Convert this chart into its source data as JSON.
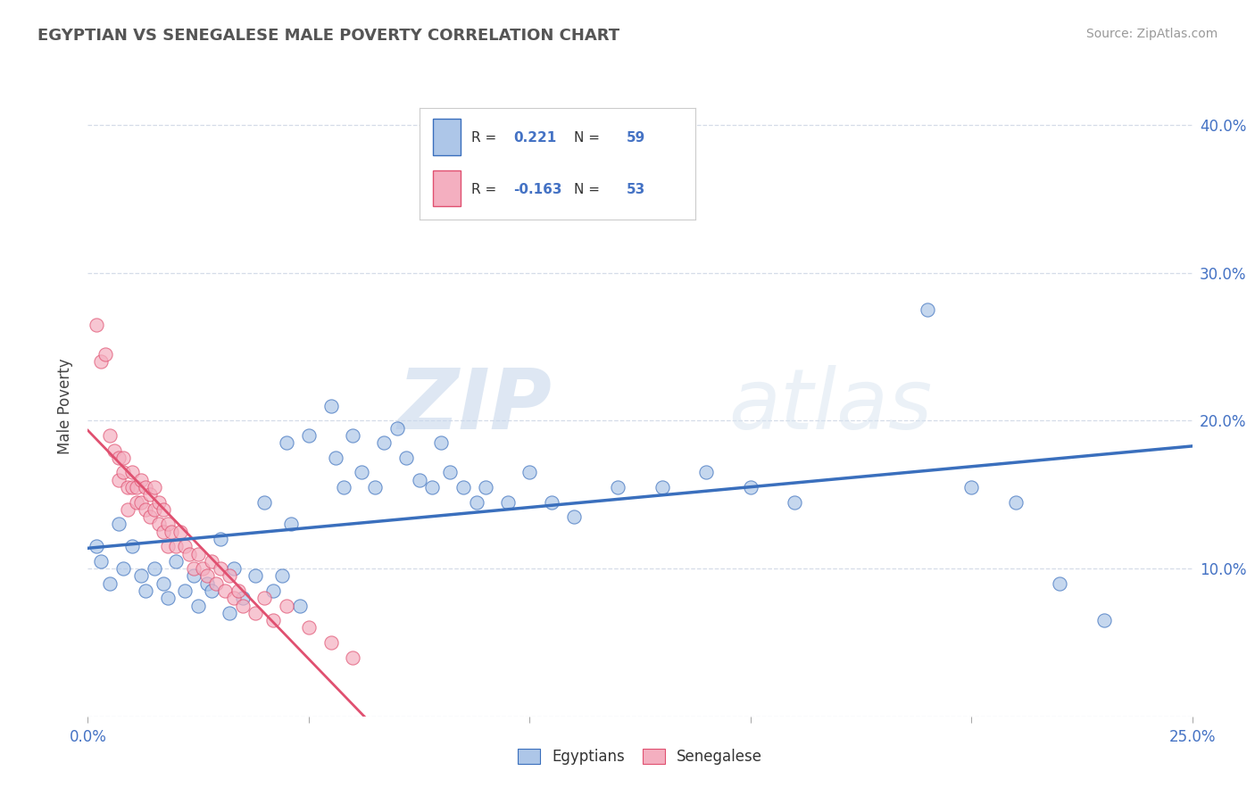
{
  "title": "EGYPTIAN VS SENEGALESE MALE POVERTY CORRELATION CHART",
  "source": "Source: ZipAtlas.com",
  "ylabel": "Male Poverty",
  "xlim": [
    0.0,
    0.25
  ],
  "ylim": [
    0.0,
    0.42
  ],
  "xticks": [
    0.0,
    0.05,
    0.1,
    0.15,
    0.2,
    0.25
  ],
  "xtick_labels": [
    "0.0%",
    "",
    "",
    "",
    "",
    "25.0%"
  ],
  "yticks": [
    0.0,
    0.1,
    0.2,
    0.3,
    0.4
  ],
  "ytick_labels": [
    "",
    "10.0%",
    "20.0%",
    "30.0%",
    "40.0%"
  ],
  "r_egyptian": 0.221,
  "n_egyptian": 59,
  "r_senegalese": -0.163,
  "n_senegalese": 53,
  "blue_color": "#adc6e8",
  "pink_color": "#f4afc0",
  "blue_line_color": "#3a6fbd",
  "pink_line_color": "#e05070",
  "watermark_zip": "ZIP",
  "watermark_atlas": "atlas",
  "background_color": "#ffffff",
  "grid_color": "#d5dce8",
  "egyptian_points": [
    [
      0.002,
      0.115
    ],
    [
      0.003,
      0.105
    ],
    [
      0.005,
      0.09
    ],
    [
      0.007,
      0.13
    ],
    [
      0.008,
      0.1
    ],
    [
      0.01,
      0.115
    ],
    [
      0.012,
      0.095
    ],
    [
      0.013,
      0.085
    ],
    [
      0.015,
      0.1
    ],
    [
      0.017,
      0.09
    ],
    [
      0.018,
      0.08
    ],
    [
      0.02,
      0.105
    ],
    [
      0.022,
      0.085
    ],
    [
      0.024,
      0.095
    ],
    [
      0.025,
      0.075
    ],
    [
      0.027,
      0.09
    ],
    [
      0.028,
      0.085
    ],
    [
      0.03,
      0.12
    ],
    [
      0.032,
      0.07
    ],
    [
      0.033,
      0.1
    ],
    [
      0.035,
      0.08
    ],
    [
      0.038,
      0.095
    ],
    [
      0.04,
      0.145
    ],
    [
      0.042,
      0.085
    ],
    [
      0.044,
      0.095
    ],
    [
      0.045,
      0.185
    ],
    [
      0.046,
      0.13
    ],
    [
      0.048,
      0.075
    ],
    [
      0.05,
      0.19
    ],
    [
      0.055,
      0.21
    ],
    [
      0.056,
      0.175
    ],
    [
      0.058,
      0.155
    ],
    [
      0.06,
      0.19
    ],
    [
      0.062,
      0.165
    ],
    [
      0.065,
      0.155
    ],
    [
      0.067,
      0.185
    ],
    [
      0.07,
      0.195
    ],
    [
      0.072,
      0.175
    ],
    [
      0.075,
      0.16
    ],
    [
      0.078,
      0.155
    ],
    [
      0.08,
      0.185
    ],
    [
      0.082,
      0.165
    ],
    [
      0.085,
      0.155
    ],
    [
      0.088,
      0.145
    ],
    [
      0.09,
      0.155
    ],
    [
      0.095,
      0.145
    ],
    [
      0.1,
      0.165
    ],
    [
      0.105,
      0.145
    ],
    [
      0.11,
      0.135
    ],
    [
      0.12,
      0.155
    ],
    [
      0.13,
      0.155
    ],
    [
      0.14,
      0.165
    ],
    [
      0.15,
      0.155
    ],
    [
      0.16,
      0.145
    ],
    [
      0.19,
      0.275
    ],
    [
      0.2,
      0.155
    ],
    [
      0.21,
      0.145
    ],
    [
      0.22,
      0.09
    ],
    [
      0.23,
      0.065
    ]
  ],
  "senegalese_points": [
    [
      0.002,
      0.265
    ],
    [
      0.003,
      0.24
    ],
    [
      0.004,
      0.245
    ],
    [
      0.005,
      0.19
    ],
    [
      0.006,
      0.18
    ],
    [
      0.007,
      0.175
    ],
    [
      0.007,
      0.16
    ],
    [
      0.008,
      0.175
    ],
    [
      0.008,
      0.165
    ],
    [
      0.009,
      0.155
    ],
    [
      0.009,
      0.14
    ],
    [
      0.01,
      0.165
    ],
    [
      0.01,
      0.155
    ],
    [
      0.011,
      0.155
    ],
    [
      0.011,
      0.145
    ],
    [
      0.012,
      0.16
    ],
    [
      0.012,
      0.145
    ],
    [
      0.013,
      0.155
    ],
    [
      0.013,
      0.14
    ],
    [
      0.014,
      0.15
    ],
    [
      0.014,
      0.135
    ],
    [
      0.015,
      0.155
    ],
    [
      0.015,
      0.14
    ],
    [
      0.016,
      0.145
    ],
    [
      0.016,
      0.13
    ],
    [
      0.017,
      0.14
    ],
    [
      0.017,
      0.125
    ],
    [
      0.018,
      0.13
    ],
    [
      0.018,
      0.115
    ],
    [
      0.019,
      0.125
    ],
    [
      0.02,
      0.115
    ],
    [
      0.021,
      0.125
    ],
    [
      0.022,
      0.115
    ],
    [
      0.023,
      0.11
    ],
    [
      0.024,
      0.1
    ],
    [
      0.025,
      0.11
    ],
    [
      0.026,
      0.1
    ],
    [
      0.027,
      0.095
    ],
    [
      0.028,
      0.105
    ],
    [
      0.029,
      0.09
    ],
    [
      0.03,
      0.1
    ],
    [
      0.031,
      0.085
    ],
    [
      0.032,
      0.095
    ],
    [
      0.033,
      0.08
    ],
    [
      0.034,
      0.085
    ],
    [
      0.035,
      0.075
    ],
    [
      0.038,
      0.07
    ],
    [
      0.04,
      0.08
    ],
    [
      0.042,
      0.065
    ],
    [
      0.045,
      0.075
    ],
    [
      0.05,
      0.06
    ],
    [
      0.055,
      0.05
    ],
    [
      0.06,
      0.04
    ]
  ]
}
